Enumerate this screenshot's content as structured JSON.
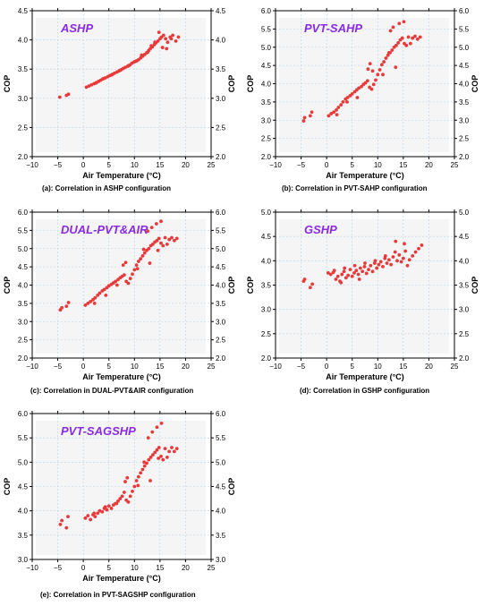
{
  "colors": {
    "points": "#e83a3a",
    "title": "#8a2be2",
    "plot_bg": "#f5f5f5",
    "grid": "#b9d3e6"
  },
  "chart_data": [
    {
      "type": "scatter",
      "title": "ASHP",
      "xlabel": "Air Temperature (°C)",
      "ylabel": "COP",
      "ylabel_right": "COP",
      "xlim": [
        -10,
        25
      ],
      "ylim": [
        2.0,
        4.5
      ],
      "xticks": [
        -10,
        -5,
        0,
        5,
        10,
        15,
        20,
        25
      ],
      "yticks": [
        2.0,
        2.5,
        3.0,
        3.5,
        4.0,
        4.5
      ],
      "grid": true,
      "caption": "(a): Correlation in ASHP configuration",
      "series": [
        {
          "x": [
            -4.6,
            -3.3,
            -2.9,
            0.6,
            1.1,
            1.6,
            2.1,
            2.6,
            3.0,
            3.4,
            3.8,
            4.3,
            4.8,
            5.2,
            5.7,
            6.1,
            6.6,
            7.0,
            7.4,
            7.8,
            8.2,
            8.7,
            9.1,
            9.5,
            9.9,
            10.4,
            10.8,
            11.2,
            11.6,
            12.0,
            12.4,
            12.8,
            13.1,
            13.5,
            13.9,
            14.2,
            14.6,
            15.0,
            15.3,
            15.7,
            16.1,
            16.5,
            17.0,
            17.5,
            18.1,
            18.6,
            2.4,
            4.0,
            5.5,
            7.2,
            8.9,
            10.1,
            11.4,
            12.6,
            13.3,
            14.0,
            14.8,
            15.5,
            16.3,
            17.2
          ],
          "y": [
            3.02,
            3.05,
            3.07,
            3.19,
            3.21,
            3.23,
            3.25,
            3.27,
            3.29,
            3.31,
            3.33,
            3.35,
            3.37,
            3.39,
            3.41,
            3.43,
            3.45,
            3.47,
            3.49,
            3.51,
            3.53,
            3.55,
            3.57,
            3.6,
            3.62,
            3.64,
            3.66,
            3.69,
            3.72,
            3.75,
            3.78,
            3.82,
            3.85,
            3.88,
            3.92,
            3.95,
            3.98,
            4.02,
            4.05,
            4.08,
            4.02,
            3.96,
            4.05,
            4.08,
            3.98,
            4.05,
            3.26,
            3.34,
            3.4,
            3.48,
            3.56,
            3.63,
            3.74,
            3.79,
            3.9,
            3.96,
            4.13,
            3.87,
            3.85,
            4.02
          ]
        }
      ]
    },
    {
      "type": "scatter",
      "title": "PVT-SAHP",
      "xlabel": "Air Temperature (°C)",
      "ylabel": "COP",
      "ylabel_right": "COP",
      "xlim": [
        -10,
        25
      ],
      "ylim": [
        2.0,
        6.0
      ],
      "xticks": [
        -10,
        -5,
        0,
        5,
        10,
        15,
        20,
        25
      ],
      "yticks": [
        2.0,
        2.5,
        3.0,
        3.5,
        4.0,
        4.5,
        5.0,
        5.5,
        6.0
      ],
      "grid": true,
      "caption": "(b): Correlation in PVT-SAHP configuration",
      "series": [
        {
          "x": [
            -4.5,
            -4.3,
            -3.2,
            -2.9,
            0.4,
            0.9,
            1.4,
            1.9,
            2.3,
            2.8,
            3.2,
            3.7,
            4.1,
            4.6,
            5.0,
            5.5,
            5.9,
            6.3,
            6.8,
            7.2,
            7.6,
            8.0,
            8.4,
            8.8,
            9.2,
            9.6,
            10.0,
            10.4,
            10.8,
            11.2,
            11.6,
            12.0,
            12.4,
            12.8,
            13.2,
            13.6,
            14.0,
            14.4,
            14.8,
            15.2,
            15.6,
            16.0,
            16.4,
            16.8,
            17.3,
            17.8,
            18.3,
            8.1,
            8.5,
            9.0,
            12.5,
            13.0,
            14.2,
            15.1,
            2.0,
            4.0,
            6.0,
            11.0,
            12.2,
            13.5
          ],
          "y": [
            2.98,
            3.07,
            3.12,
            3.22,
            3.12,
            3.18,
            3.22,
            3.28,
            3.35,
            3.42,
            3.5,
            3.58,
            3.62,
            3.67,
            3.72,
            3.78,
            3.83,
            3.88,
            3.92,
            3.98,
            4.02,
            4.08,
            3.9,
            3.85,
            3.98,
            4.1,
            4.25,
            4.38,
            4.52,
            4.6,
            4.7,
            4.78,
            4.85,
            4.92,
            5.0,
            5.05,
            5.12,
            5.2,
            5.25,
            5.1,
            5.05,
            5.28,
            5.1,
            5.25,
            5.3,
            5.22,
            5.28,
            4.4,
            4.55,
            4.35,
            5.45,
            5.55,
            5.65,
            5.7,
            3.15,
            3.5,
            3.62,
            4.25,
            4.85,
            4.45
          ]
        }
      ]
    },
    {
      "type": "scatter",
      "title": "DUAL-PVT&AIR",
      "xlabel": "Air Temperature (°C)",
      "ylabel": "COP",
      "ylabel_right": "COP",
      "xlim": [
        -10,
        25
      ],
      "ylim": [
        2.0,
        6.0
      ],
      "xticks": [
        -10,
        -5,
        0,
        5,
        10,
        15,
        20,
        25
      ],
      "yticks": [
        2.0,
        2.5,
        3.0,
        3.5,
        4.0,
        4.5,
        5.0,
        5.5,
        6.0
      ],
      "grid": true,
      "caption": "(c): Correlation in DUAL-PVT&AIR configuration",
      "series": [
        {
          "x": [
            -4.5,
            -4.2,
            -3.3,
            -2.9,
            0.4,
            0.9,
            1.4,
            1.9,
            2.3,
            2.8,
            3.2,
            3.7,
            4.1,
            4.6,
            5.0,
            5.5,
            5.9,
            6.3,
            6.8,
            7.2,
            7.6,
            8.0,
            8.4,
            8.8,
            9.2,
            9.6,
            10.0,
            10.4,
            10.8,
            11.2,
            11.6,
            12.0,
            12.4,
            12.8,
            13.2,
            13.6,
            14.0,
            14.4,
            14.8,
            15.2,
            15.6,
            16.0,
            16.4,
            16.8,
            17.3,
            17.8,
            18.3,
            7.8,
            8.3,
            12.6,
            13.4,
            14.3,
            15.2,
            2.2,
            4.4,
            6.6,
            10.6,
            11.8,
            13.0,
            14.6
          ],
          "y": [
            3.32,
            3.38,
            3.42,
            3.52,
            3.45,
            3.5,
            3.55,
            3.6,
            3.65,
            3.72,
            3.78,
            3.84,
            3.88,
            3.93,
            3.98,
            4.02,
            4.06,
            4.1,
            4.15,
            4.2,
            4.24,
            4.28,
            4.1,
            4.05,
            4.18,
            4.3,
            4.42,
            4.55,
            4.65,
            4.72,
            4.8,
            4.88,
            4.95,
            5.0,
            5.08,
            5.12,
            5.18,
            5.22,
            5.28,
            5.15,
            5.08,
            5.3,
            5.12,
            5.25,
            5.3,
            5.22,
            5.28,
            4.55,
            4.62,
            5.48,
            5.58,
            5.68,
            5.75,
            3.5,
            3.72,
            4.0,
            4.45,
            4.98,
            4.6,
            4.95
          ]
        }
      ]
    },
    {
      "type": "scatter",
      "title": "GSHP",
      "xlabel": "Air Temperature (°C)",
      "ylabel": "COP",
      "ylabel_right": "COP",
      "xlim": [
        -10,
        25
      ],
      "ylim": [
        2.0,
        5.0
      ],
      "xticks": [
        -10,
        -5,
        0,
        5,
        10,
        15,
        20,
        25
      ],
      "yticks": [
        2.0,
        2.5,
        3.0,
        3.5,
        4.0,
        4.5,
        5.0
      ],
      "grid": true,
      "caption": "(d): Correlation in GSHP configuration",
      "series": [
        {
          "x": [
            -4.5,
            -4.3,
            -3.2,
            -2.8,
            0.3,
            0.8,
            1.3,
            1.8,
            2.2,
            2.6,
            3.0,
            3.4,
            3.8,
            4.2,
            4.6,
            5.0,
            5.4,
            5.8,
            6.2,
            6.6,
            7.0,
            7.4,
            7.8,
            8.2,
            8.6,
            9.0,
            9.4,
            9.8,
            10.2,
            10.6,
            11.0,
            11.4,
            11.8,
            12.2,
            12.6,
            13.0,
            13.4,
            13.8,
            14.2,
            14.6,
            15.0,
            15.4,
            15.8,
            16.2,
            16.8,
            17.4,
            18.0,
            18.6,
            1.5,
            3.5,
            5.5,
            7.5,
            9.5,
            11.5,
            13.5,
            15.2,
            2.8,
            6.4
          ],
          "y": [
            3.58,
            3.62,
            3.45,
            3.52,
            3.75,
            3.72,
            3.76,
            3.62,
            3.68,
            3.58,
            3.72,
            3.78,
            3.65,
            3.7,
            3.82,
            3.68,
            3.75,
            3.8,
            3.72,
            3.85,
            3.78,
            3.88,
            3.74,
            3.82,
            3.9,
            3.78,
            3.95,
            3.85,
            3.92,
            3.98,
            3.88,
            4.05,
            3.95,
            4.02,
            3.92,
            4.08,
            4.18,
            4.0,
            4.12,
            3.98,
            4.05,
            4.2,
            3.9,
            4.02,
            4.1,
            4.18,
            4.25,
            4.32,
            3.8,
            3.85,
            3.9,
            3.95,
            4.0,
            4.1,
            4.4,
            4.35,
            3.55,
            3.62
          ]
        }
      ]
    },
    {
      "type": "scatter",
      "title": "PVT-SAGSHP",
      "xlabel": "Air Temperature (°C)",
      "ylabel": "COP",
      "ylabel_right": "COP",
      "xlim": [
        -10,
        25
      ],
      "ylim": [
        3.0,
        6.0
      ],
      "xticks": [
        -10,
        -5,
        0,
        5,
        10,
        15,
        20,
        25
      ],
      "yticks": [
        3.0,
        3.5,
        4.0,
        4.5,
        5.0,
        5.5,
        6.0
      ],
      "grid": true,
      "caption": "(e): Correlation in PVT-SAGSHP configuration",
      "series": [
        {
          "x": [
            -4.5,
            -4.2,
            -3.3,
            -3.0,
            0.4,
            0.9,
            1.4,
            1.9,
            2.3,
            2.8,
            3.2,
            3.7,
            4.1,
            4.6,
            5.0,
            5.5,
            5.9,
            6.3,
            6.8,
            7.2,
            7.6,
            8.0,
            8.4,
            8.8,
            9.2,
            9.6,
            10.0,
            10.4,
            10.8,
            11.2,
            11.6,
            12.0,
            12.4,
            12.8,
            13.2,
            13.6,
            14.0,
            14.4,
            14.8,
            15.2,
            15.6,
            16.0,
            16.4,
            16.8,
            17.3,
            17.8,
            18.3,
            8.2,
            8.6,
            12.7,
            13.5,
            14.4,
            15.3,
            2.1,
            4.3,
            6.5,
            10.7,
            11.9,
            13.1,
            14.7
          ],
          "y": [
            3.72,
            3.8,
            3.65,
            3.88,
            3.85,
            3.9,
            3.82,
            3.92,
            3.88,
            3.95,
            4.0,
            3.98,
            4.05,
            4.02,
            4.1,
            4.05,
            4.12,
            4.15,
            4.2,
            4.25,
            4.3,
            4.38,
            4.22,
            4.18,
            4.3,
            4.4,
            4.5,
            4.62,
            4.7,
            4.78,
            4.85,
            4.92,
            4.98,
            5.05,
            5.1,
            5.15,
            5.2,
            5.25,
            5.3,
            5.12,
            5.05,
            5.28,
            5.1,
            5.22,
            5.3,
            5.22,
            5.28,
            4.6,
            4.68,
            5.5,
            5.62,
            5.72,
            5.8,
            3.95,
            4.08,
            4.15,
            4.52,
            5.0,
            4.62,
            5.08
          ]
        }
      ]
    }
  ]
}
